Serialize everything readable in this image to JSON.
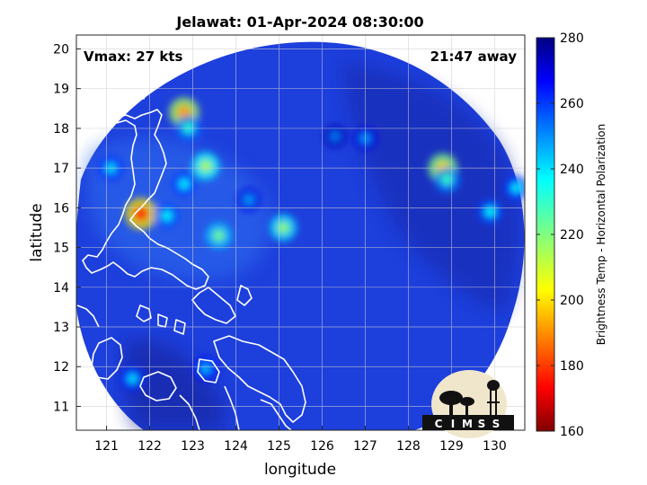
{
  "title": "Jelawat: 01-Apr-2024 08:30:00",
  "annotations": {
    "vmax": "Vmax: 27 kts",
    "time_away": "21:47 away"
  },
  "axes": {
    "xlabel": "longitude",
    "ylabel": "latitude",
    "xlim": [
      120.3,
      130.7
    ],
    "ylim": [
      10.4,
      20.35
    ],
    "xticks": [
      121,
      122,
      123,
      124,
      125,
      126,
      127,
      128,
      129,
      130
    ],
    "yticks": [
      11,
      12,
      13,
      14,
      15,
      16,
      17,
      18,
      19,
      20
    ],
    "grid": true
  },
  "colorbar": {
    "label": "Brightness Temp - Horizontal Polarization",
    "range": [
      160,
      280
    ],
    "ticks": [
      160,
      180,
      200,
      220,
      240,
      260,
      280
    ],
    "colormap": "jet"
  },
  "swath": {
    "center_lon": 125.35,
    "center_lat": 15.45,
    "background_temp": 265
  },
  "features": [
    {
      "lon": 122.8,
      "lat": 18.4,
      "temp": 192
    },
    {
      "lon": 122.9,
      "lat": 18.0,
      "temp": 232
    },
    {
      "lon": 123.3,
      "lat": 17.05,
      "temp": 214
    },
    {
      "lon": 121.8,
      "lat": 15.85,
      "temp": 178
    },
    {
      "lon": 122.4,
      "lat": 15.8,
      "temp": 236
    },
    {
      "lon": 123.6,
      "lat": 15.3,
      "temp": 222
    },
    {
      "lon": 125.1,
      "lat": 15.5,
      "temp": 218
    },
    {
      "lon": 122.8,
      "lat": 16.6,
      "temp": 238
    },
    {
      "lon": 121.1,
      "lat": 17.0,
      "temp": 240
    },
    {
      "lon": 121.6,
      "lat": 11.7,
      "temp": 240
    },
    {
      "lon": 123.3,
      "lat": 11.95,
      "temp": 244
    },
    {
      "lon": 126.3,
      "lat": 17.8,
      "temp": 252
    },
    {
      "lon": 127.0,
      "lat": 17.75,
      "temp": 248
    },
    {
      "lon": 128.8,
      "lat": 17.0,
      "temp": 198
    },
    {
      "lon": 128.9,
      "lat": 16.7,
      "temp": 230
    },
    {
      "lon": 129.9,
      "lat": 15.9,
      "temp": 236
    },
    {
      "lon": 130.5,
      "lat": 16.5,
      "temp": 238
    },
    {
      "lon": 124.3,
      "lat": 16.2,
      "temp": 248
    }
  ],
  "logo": {
    "text": "CIMSS"
  }
}
